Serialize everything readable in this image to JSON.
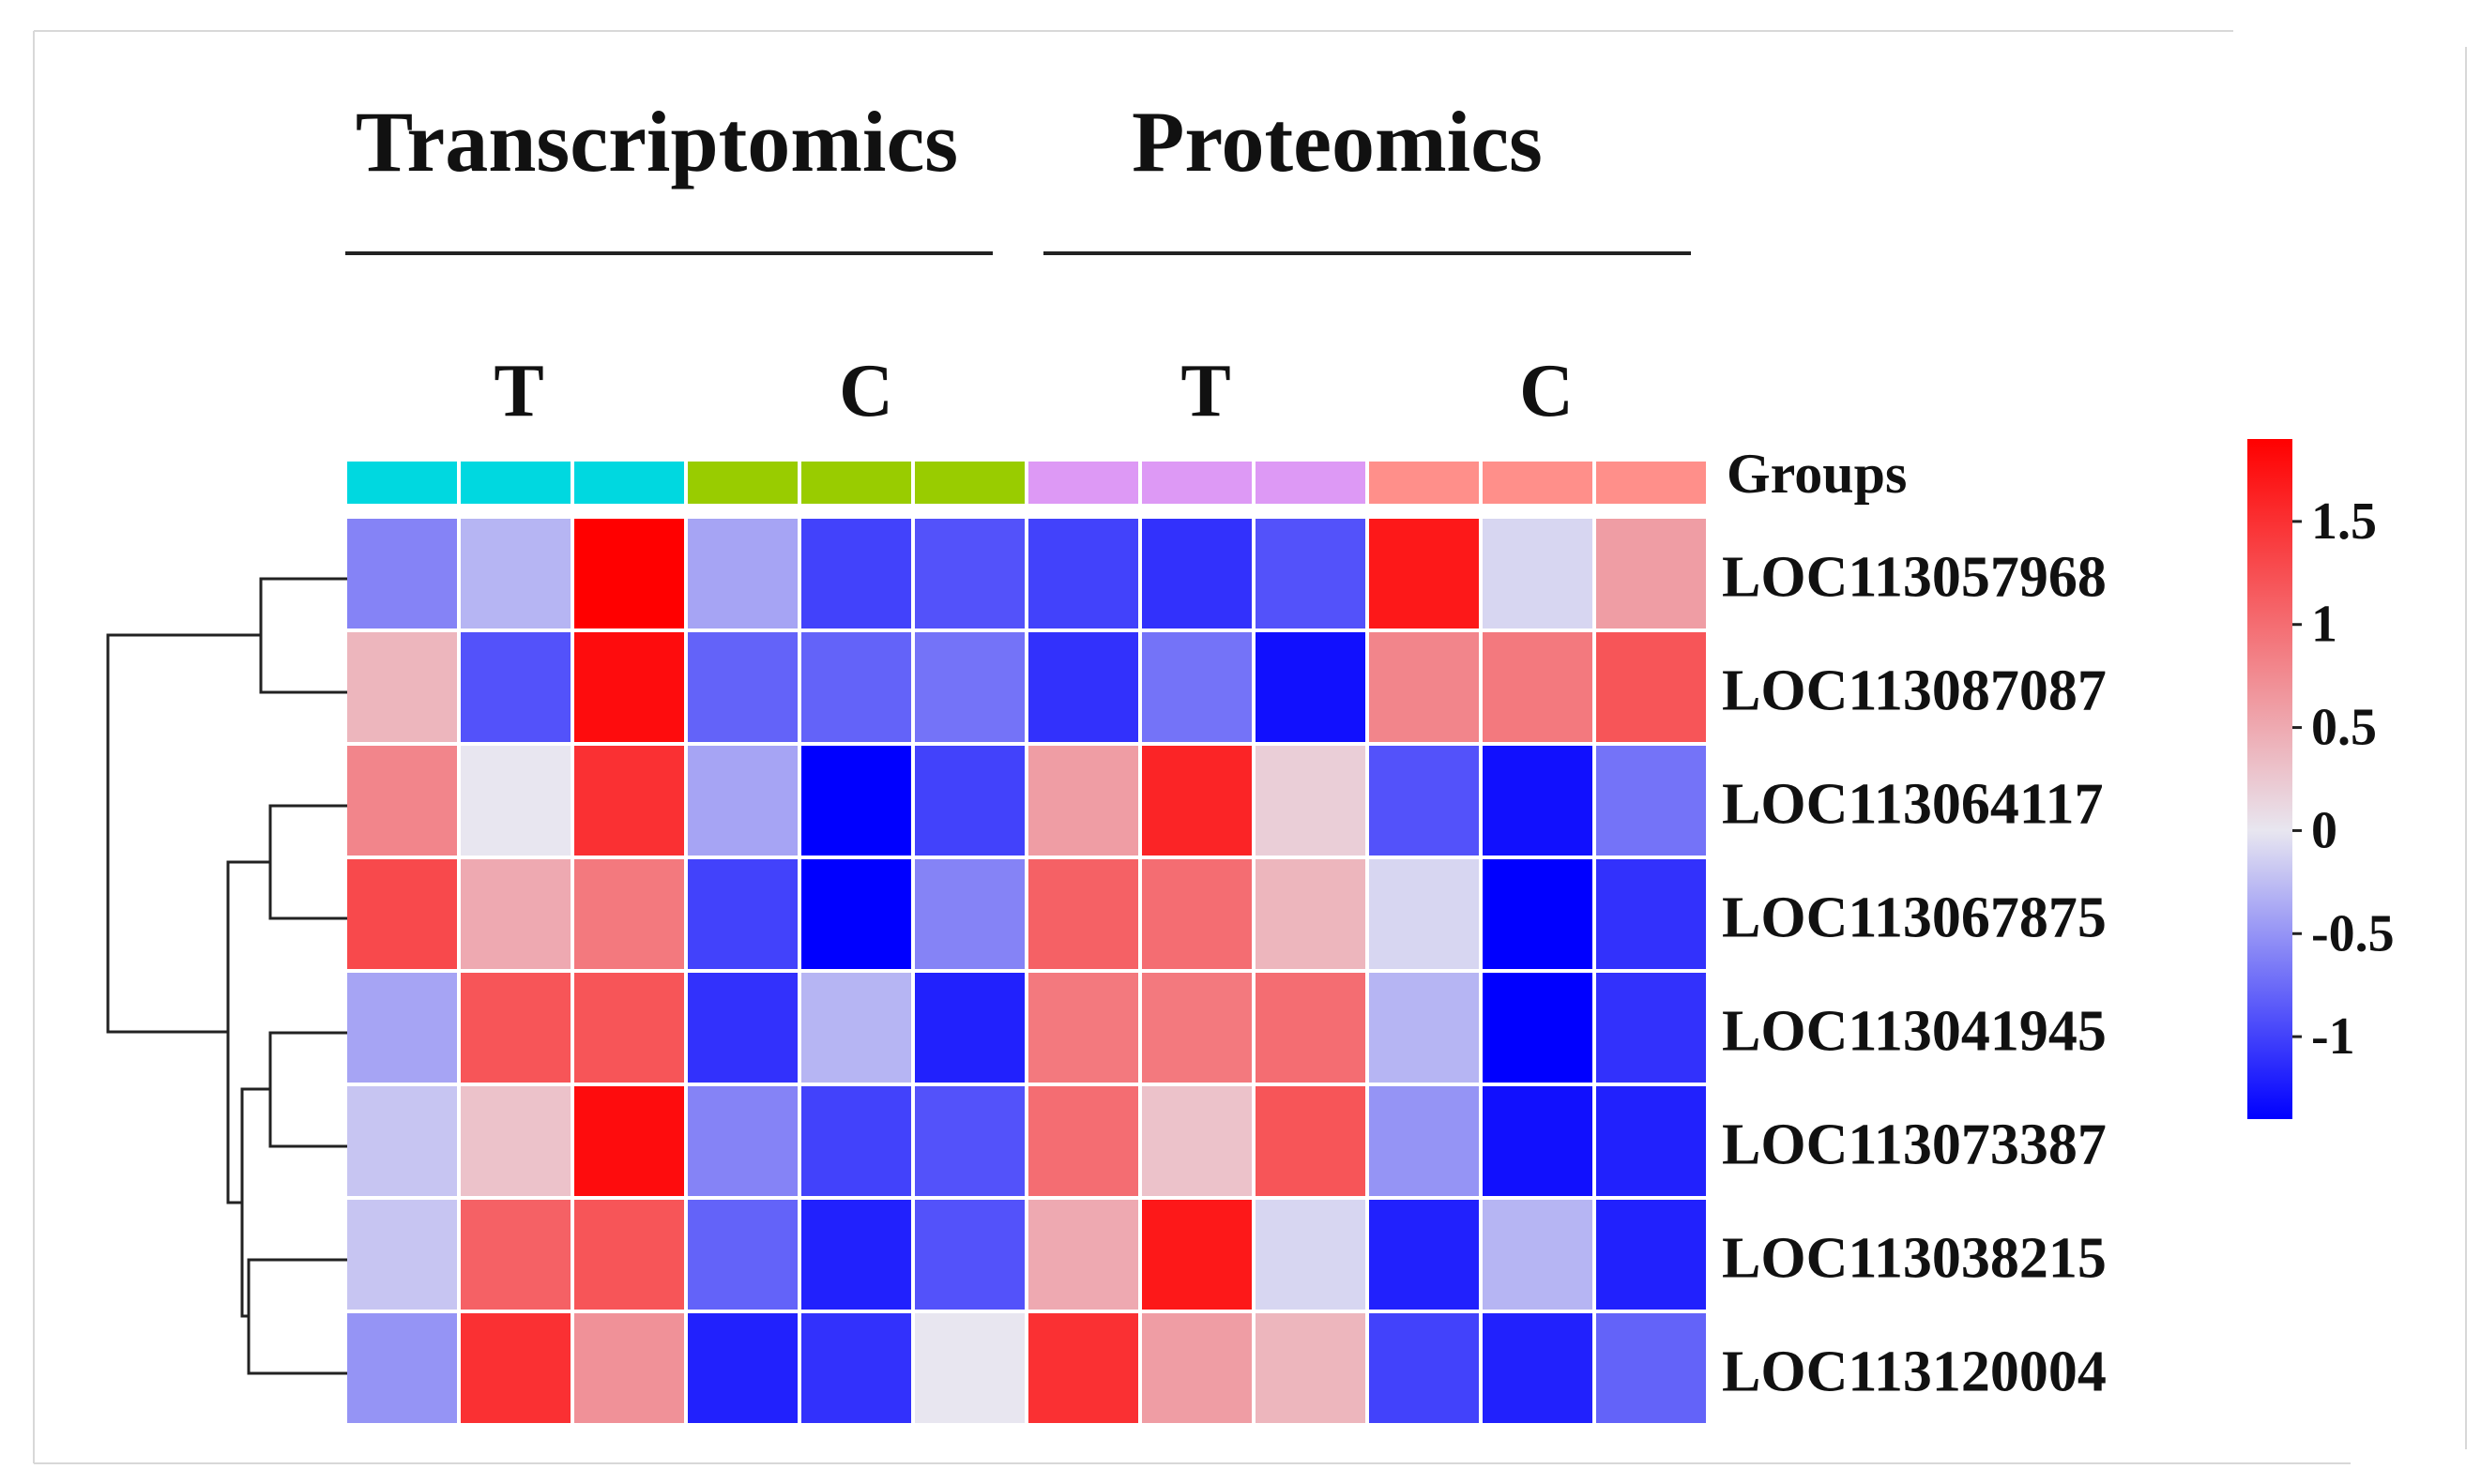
{
  "chart_data": {
    "type": "heatmap",
    "section_labels": [
      "Transcriptomics",
      "Proteomics"
    ],
    "group_labels": [
      "T",
      "C",
      "T",
      "C"
    ],
    "groups_legend_label": "Groups",
    "column_groups": [
      0,
      0,
      0,
      1,
      1,
      1,
      2,
      2,
      2,
      3,
      3,
      3
    ],
    "group_colors": [
      "#00d8e0",
      "#99cc00",
      "#dd99f5",
      "#ff8f8a"
    ],
    "rows": [
      "LOC113057968",
      "LOC113087087",
      "LOC113064117",
      "LOC113067875",
      "LOC113041945",
      "LOC113073387",
      "LOC113038215",
      "LOC113120004"
    ],
    "values": [
      [
        -0.6,
        -0.3,
        1.9,
        -0.4,
        -1.0,
        -0.9,
        -1.0,
        -1.1,
        -0.9,
        1.7,
        -0.1,
        0.6
      ],
      [
        0.4,
        -0.9,
        1.8,
        -0.8,
        -0.8,
        -0.7,
        -1.1,
        -0.7,
        -1.3,
        0.8,
        0.9,
        1.2
      ],
      [
        0.8,
        0.0,
        1.5,
        -0.4,
        -1.4,
        -1.0,
        0.6,
        1.6,
        0.2,
        -0.9,
        -1.3,
        -0.7
      ],
      [
        1.3,
        0.5,
        0.9,
        -1.0,
        -1.4,
        -0.6,
        1.1,
        1.0,
        0.4,
        -0.1,
        -1.4,
        -1.1
      ],
      [
        -0.4,
        1.2,
        1.2,
        -1.1,
        -0.3,
        -1.2,
        0.9,
        0.9,
        1.0,
        -0.3,
        -1.4,
        -1.1
      ],
      [
        -0.2,
        0.3,
        1.8,
        -0.6,
        -1.0,
        -0.9,
        1.0,
        0.3,
        1.2,
        -0.5,
        -1.3,
        -1.2
      ],
      [
        -0.2,
        1.1,
        1.2,
        -0.8,
        -1.2,
        -0.9,
        0.5,
        1.7,
        -0.1,
        -1.2,
        -0.3,
        -1.2
      ],
      [
        -0.5,
        1.5,
        0.7,
        -1.2,
        -1.1,
        0.0,
        1.5,
        0.6,
        0.4,
        -1.0,
        -1.2,
        -0.8
      ]
    ],
    "colorbar": {
      "ticks": [
        "1.5",
        "1",
        "0.5",
        "0",
        "-0.5",
        "-1"
      ],
      "tick_values": [
        1.5,
        1,
        0.5,
        0,
        -0.5,
        -1
      ],
      "range": [
        -1.4,
        1.9
      ]
    },
    "colors": {
      "low": "#0000ff",
      "mid": "#e8e6f0",
      "high": "#ff0000"
    }
  }
}
